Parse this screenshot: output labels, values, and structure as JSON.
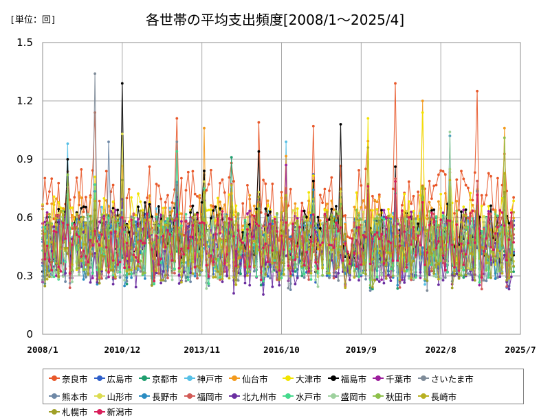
{
  "chart_data": {
    "type": "line",
    "title": "各世帯の平均支出頻度[2008/1～2025/4]",
    "unit_label": "[単位：回]",
    "xlabel": "",
    "ylabel": "",
    "x_start": "2008/1",
    "x_end": "2025/7",
    "x_ticks": [
      "2008/1",
      "2010/12",
      "2013/11",
      "2016/10",
      "2019/9",
      "2022/8",
      "2025/7"
    ],
    "y_ticks": [
      "0",
      "0.3",
      "0.6",
      "0.9",
      "1.2",
      "1.5"
    ],
    "ylim": [
      0,
      1.5
    ],
    "grid": true,
    "legend_position": "bottom",
    "series": [
      {
        "name": "奈良市",
        "color": "#E8582A",
        "base": 0.66,
        "amp": 0.2,
        "peaks": [
          {
            "x": "2009/12",
            "y": 1.14
          },
          {
            "x": "2012/12",
            "y": 1.11
          },
          {
            "x": "2015/12",
            "y": 1.09
          },
          {
            "x": "2017/12",
            "y": 1.07
          },
          {
            "x": "2020/12",
            "y": 1.29
          },
          {
            "x": "2023/12",
            "y": 1.25
          }
        ]
      },
      {
        "name": "広島市",
        "color": "#2E5FC9",
        "base": 0.46,
        "amp": 0.17,
        "peaks": [
          {
            "x": "2013/12",
            "y": 0.82
          }
        ]
      },
      {
        "name": "京都市",
        "color": "#1F9E6E",
        "base": 0.45,
        "amp": 0.17,
        "peaks": [
          {
            "x": "2014/12",
            "y": 0.91
          }
        ]
      },
      {
        "name": "神戸市",
        "color": "#56C0E6",
        "base": 0.48,
        "amp": 0.18,
        "peaks": [
          {
            "x": "2008/12",
            "y": 0.98
          },
          {
            "x": "2016/12",
            "y": 0.99
          }
        ]
      },
      {
        "name": "仙台市",
        "color": "#F39A1C",
        "base": 0.55,
        "amp": 0.18,
        "peaks": [
          {
            "x": "2013/12",
            "y": 1.06
          },
          {
            "x": "2021/12",
            "y": 1.2
          },
          {
            "x": "2024/12",
            "y": 1.06
          }
        ]
      },
      {
        "name": "大津市",
        "color": "#F2E400",
        "base": 0.53,
        "amp": 0.2,
        "peaks": [
          {
            "x": "2019/12",
            "y": 1.11
          },
          {
            "x": "2021/12",
            "y": 1.14
          }
        ]
      },
      {
        "name": "福島市",
        "color": "#000000",
        "base": 0.52,
        "amp": 0.16,
        "peaks": [
          {
            "x": "2008/12",
            "y": 0.9
          },
          {
            "x": "2010/12",
            "y": 1.29
          },
          {
            "x": "2015/12",
            "y": 0.94
          },
          {
            "x": "2018/12",
            "y": 1.08
          }
        ]
      },
      {
        "name": "千葉市",
        "color": "#9C1E9C",
        "base": 0.46,
        "amp": 0.18,
        "peaks": [
          {
            "x": "2016/12",
            "y": 0.87
          }
        ]
      },
      {
        "name": "さいたま市",
        "color": "#7F8C99",
        "base": 0.44,
        "amp": 0.17,
        "peaks": [
          {
            "x": "2009/12",
            "y": 1.34
          },
          {
            "x": "2012/12",
            "y": 0.99
          }
        ]
      },
      {
        "name": "熊本市",
        "color": "#6E88A6",
        "base": 0.43,
        "amp": 0.16,
        "peaks": [
          {
            "x": "2010/6",
            "y": 0.99
          }
        ]
      },
      {
        "name": "山形市",
        "color": "#DCDC50",
        "base": 0.48,
        "amp": 0.16,
        "peaks": [
          {
            "x": "2010/12",
            "y": 1.03
          }
        ]
      },
      {
        "name": "長野市",
        "color": "#2A8CC2",
        "base": 0.44,
        "amp": 0.16,
        "peaks": [
          {
            "x": "2022/12",
            "y": 1.02
          }
        ]
      },
      {
        "name": "福岡市",
        "color": "#D25A56",
        "base": 0.45,
        "amp": 0.17,
        "peaks": []
      },
      {
        "name": "北九州市",
        "color": "#6A2EA0",
        "base": 0.41,
        "amp": 0.17,
        "peaks": []
      },
      {
        "name": "水戸市",
        "color": "#44D98C",
        "base": 0.45,
        "amp": 0.17,
        "peaks": [
          {
            "x": "2012/12",
            "y": 0.94
          }
        ]
      },
      {
        "name": "盛岡市",
        "color": "#9ED19E",
        "base": 0.45,
        "amp": 0.17,
        "peaks": [
          {
            "x": "2022/12",
            "y": 1.04
          }
        ]
      },
      {
        "name": "秋田市",
        "color": "#8DC04A",
        "base": 0.47,
        "amp": 0.17,
        "peaks": [
          {
            "x": "2024/12",
            "y": 1.01
          }
        ]
      },
      {
        "name": "長崎市",
        "color": "#B8B020",
        "base": 0.46,
        "amp": 0.18,
        "peaks": [
          {
            "x": "2019/12",
            "y": 0.96
          }
        ]
      },
      {
        "name": "札幌市",
        "color": "#A0A028",
        "base": 0.45,
        "amp": 0.18,
        "peaks": []
      },
      {
        "name": "新潟市",
        "color": "#D81F5A",
        "base": 0.48,
        "amp": 0.16,
        "peaks": []
      }
    ]
  }
}
